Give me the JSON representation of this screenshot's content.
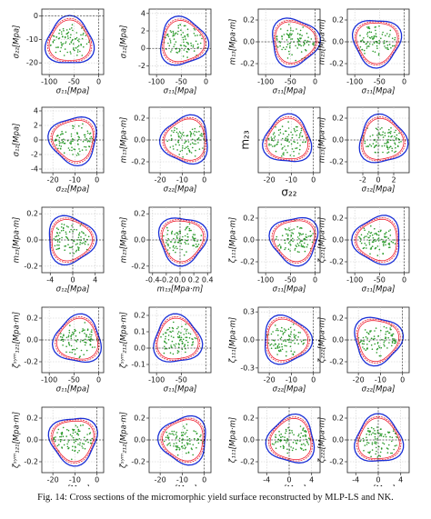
{
  "figure": {
    "panels": [
      {
        "xlabel": "σ₁₁[Mpa]",
        "ylabel": "σ₂₂[Mpa]",
        "xlim": [
          -115,
          10
        ],
        "ylim": [
          -25,
          3
        ],
        "xticks": [
          -100,
          -50,
          0
        ],
        "yticks": [
          -20,
          -10,
          0
        ]
      },
      {
        "xlabel": "σ₁₁[Mpa]",
        "ylabel": "σ₁₂[Mpa]",
        "xlim": [
          -115,
          10
        ],
        "ylim": [
          -3,
          4.5
        ],
        "xticks": [
          -100,
          -50,
          0
        ],
        "yticks": [
          -2,
          0,
          2,
          4
        ]
      },
      {
        "xlabel": "σ₁₁[Mpa]",
        "ylabel": "m₁₃[Mpa·m]",
        "xlim": [
          -115,
          10
        ],
        "ylim": [
          -0.3,
          0.3
        ],
        "xticks": [
          -100,
          -50,
          0
        ],
        "yticks": [
          -0.2,
          {
            "value": 0,
            "label": "0.0"
          },
          0.2
        ]
      },
      {
        "xlabel": "σ₁₁[Mpa]",
        "ylabel": "m₂₃[Mpa·m]",
        "xlim": [
          -115,
          10
        ],
        "ylim": [
          -0.3,
          0.3
        ],
        "xticks": [
          -100,
          -50,
          0
        ],
        "yticks": [
          -0.2,
          {
            "value": 0,
            "label": "0.0"
          },
          0.2
        ]
      },
      {
        "xlabel": "σ₂₂[Mpa]",
        "ylabel": "σ₁₂[Mpa]",
        "xlim": [
          -25,
          3
        ],
        "ylim": [
          -4.5,
          4.5
        ],
        "xticks": [
          -20,
          -10,
          0
        ],
        "yticks": [
          -4,
          -2,
          0,
          2,
          4
        ]
      },
      {
        "xlabel": "σ₂₂[Mpa]",
        "ylabel": "m₁₃[Mpa·m]",
        "xlim": [
          -25,
          3
        ],
        "ylim": [
          -0.3,
          0.3
        ],
        "xticks": [
          -20,
          -10,
          0
        ],
        "yticks": [
          -0.2,
          {
            "value": 0,
            "label": "0.0"
          },
          0.2
        ]
      },
      {
        "xlabel": "σ₂₂",
        "ylabel": "m₂₃",
        "xlim": [
          -25,
          3
        ],
        "ylim": [
          -0.3,
          0.3
        ],
        "xticks": [
          -20,
          -10,
          0
        ],
        "yticks": []
      },
      {
        "xlabel": "σ₁₂[Mpa]",
        "ylabel": "m₁₃[Mpa·m]",
        "xlim": [
          -4,
          4
        ],
        "ylim": [
          -0.3,
          0.3
        ],
        "xticks": [
          -2,
          0,
          2
        ],
        "yticks": [
          -0.2,
          {
            "value": 0,
            "label": "0.0"
          },
          0.2
        ]
      },
      {
        "xlabel": "σ₁₂[Mpa]",
        "ylabel": "m₂₃[Mpa·m]",
        "xlim": [
          -5.5,
          5.5
        ],
        "ylim": [
          -0.25,
          0.25
        ],
        "xticks": [
          -4,
          0,
          4
        ],
        "yticks": [
          -0.2,
          {
            "value": 0,
            "label": "0.0"
          },
          0.2
        ]
      },
      {
        "xlabel": "m₁₃[Mpa·m]",
        "ylabel": "m₂₃[Mpa·m]",
        "xlim": [
          -0.45,
          0.45
        ],
        "ylim": [
          -0.25,
          0.25
        ],
        "xticks": [
          -0.4,
          -0.2,
          {
            "value": 0,
            "label": "0.0"
          },
          0.2,
          0.4
        ],
        "yticks": [
          -0.2,
          {
            "value": 0,
            "label": "0.0"
          },
          0.2
        ]
      },
      {
        "xlabel": "σ₁₁[Mpa]",
        "ylabel": "ζ₁₁₁[Mpa·m]",
        "xlim": [
          -115,
          10
        ],
        "ylim": [
          -0.3,
          0.3
        ],
        "xticks": [
          -100,
          -50,
          0
        ],
        "yticks": [
          -0.2,
          {
            "value": 0,
            "label": "0.0"
          },
          0.2
        ]
      },
      {
        "xlabel": "σ₁₁[Mpa]",
        "ylabel": "ζ₂₂₁[Mpa·m]",
        "xlim": [
          -115,
          10
        ],
        "ylim": [
          -0.3,
          0.3
        ],
        "xticks": [
          -100,
          -50,
          0
        ],
        "yticks": [
          -0.2,
          {
            "value": 0,
            "label": "0.0"
          },
          0.2
        ]
      },
      {
        "xlabel": "σ₁₁[Mpa]",
        "ylabel": "ζˢʸᵐ₁₂₁[Mpa·m]",
        "xlim": [
          -115,
          10
        ],
        "ylim": [
          -0.3,
          0.3
        ],
        "xticks": [
          -100,
          -50,
          0
        ],
        "yticks": [
          -0.2,
          {
            "value": 0,
            "label": "0.0"
          },
          0.2
        ]
      },
      {
        "xlabel": "σ₁₁[Mpa]",
        "ylabel": "ζˢʸᵐ₂₁₂[Mpa·m]",
        "xlim": [
          -115,
          10
        ],
        "ylim": [
          -0.15,
          0.25
        ],
        "xticks": [
          -100,
          -50
        ],
        "yticks": [
          -0.1,
          {
            "value": 0,
            "label": "0.0"
          },
          0.1,
          0.2
        ]
      },
      {
        "xlabel": "σ₂₂[Mpa]",
        "ylabel": "ζ₁₁₁[Mpa·m]",
        "xlim": [
          -25,
          3
        ],
        "ylim": [
          -0.35,
          0.35
        ],
        "xticks": [
          -20,
          -10,
          0
        ],
        "yticks": [
          -0.3,
          {
            "value": 0,
            "label": "0.0"
          },
          0.3
        ]
      },
      {
        "xlabel": "σ₂₂[Mpa]",
        "ylabel": "ζ₂₂₂[Mpa·m]",
        "xlim": [
          -25,
          3
        ],
        "ylim": [
          -0.3,
          0.3
        ],
        "xticks": [
          -20,
          -10,
          0
        ],
        "yticks": [
          -0.2,
          {
            "value": 0,
            "label": "0.0"
          },
          0.2
        ]
      },
      {
        "xlabel": "σ₂₂[Mpa]",
        "ylabel": "ζˢʸᵐ₁₂₁[Mpa·m]",
        "xlim": [
          -25,
          3
        ],
        "ylim": [
          -0.3,
          0.3
        ],
        "xticks": [
          -20,
          -10,
          0
        ],
        "yticks": [
          -0.2,
          {
            "value": 0,
            "label": "0.0"
          },
          0.2
        ]
      },
      {
        "xlabel": "σ₂₂[Mpa]",
        "ylabel": "ζˢʸᵐ₂₁₂[Mpa·m]",
        "xlim": [
          -25,
          3
        ],
        "ylim": [
          -0.3,
          0.3
        ],
        "xticks": [
          -20,
          -10,
          0
        ],
        "yticks": [
          -0.2,
          {
            "value": 0,
            "label": "0.0"
          },
          0.2
        ]
      },
      {
        "xlabel": "σ₁₂[Mpa]",
        "ylabel": "ζ₁₁₁[Mpa·m]",
        "xlim": [
          -5.5,
          5.5
        ],
        "ylim": [
          -0.3,
          0.3
        ],
        "xticks": [
          -4,
          0,
          4
        ],
        "yticks": [
          -0.2,
          {
            "value": 0,
            "label": "0.0"
          },
          0.2
        ]
      },
      {
        "xlabel": "σ₁₂[Mpa]",
        "ylabel": "ζ₂₂₂[Mpa·m]",
        "xlim": [
          -5.5,
          5.5
        ],
        "ylim": [
          -0.3,
          0.3
        ],
        "xticks": [
          -4,
          0,
          4
        ],
        "yticks": [
          -0.2,
          {
            "value": 0,
            "label": "0.0"
          },
          0.2
        ]
      }
    ],
    "caption": "Fig. 14: Cross sections of the micromorphic yield surface reconstructed by MLP-LS and NK."
  }
}
